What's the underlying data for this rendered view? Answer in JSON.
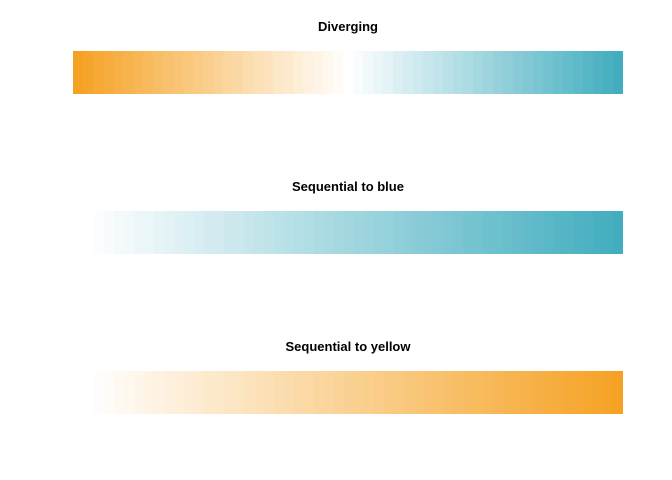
{
  "palettes": [
    {
      "title": "Diverging",
      "start_color": "#F5A224",
      "mid_color": "#FFFFFF",
      "end_color": "#42ADBF",
      "steps": 55
    },
    {
      "title": "Sequential to blue",
      "start_color": "#FFFFFF",
      "end_color": "#42ADBF",
      "steps": 54
    },
    {
      "title": "Sequential to yellow",
      "start_color": "#FFFFFF",
      "end_color": "#F5A224",
      "steps": 54
    }
  ]
}
